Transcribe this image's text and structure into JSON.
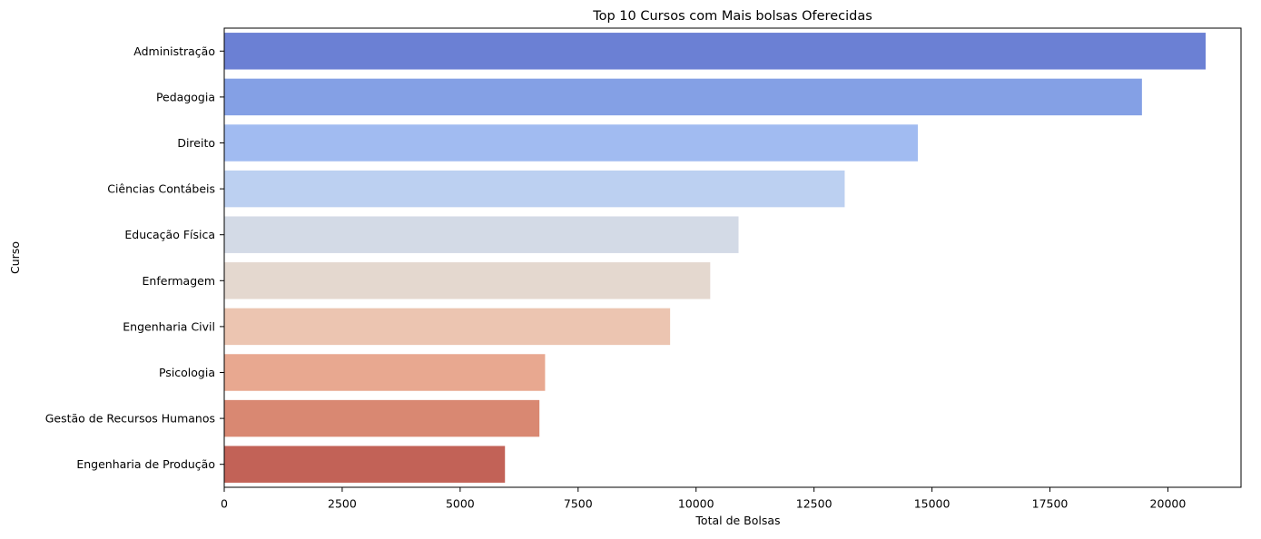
{
  "chart_data": {
    "type": "bar",
    "orientation": "horizontal",
    "title": "Top 10 Cursos com Mais bolsas Oferecidas",
    "xlabel": "Total de Bolsas",
    "ylabel": "Curso",
    "xlim": [
      0,
      21550
    ],
    "xticks": [
      0,
      2500,
      5000,
      7500,
      10000,
      12500,
      15000,
      17500,
      20000
    ],
    "xtick_labels": [
      "0",
      "2500",
      "5000",
      "7500",
      "10000",
      "12500",
      "15000",
      "17500",
      "20000"
    ],
    "grid": false,
    "legend": "none",
    "categories": [
      "Administração",
      "Pedagogia",
      "Direito",
      "Ciências Contábeis",
      "Educação Física",
      "Enfermagem",
      "Engenharia Civil",
      "Psicologia",
      "Gestão de Recursos Humanos",
      "Engenharia de Produção"
    ],
    "values": [
      20800,
      19450,
      14700,
      13150,
      10900,
      10300,
      9450,
      6800,
      6680,
      5950
    ],
    "colors": [
      "#6b80d4",
      "#84a0e5",
      "#a1bbf1",
      "#bcd0f1",
      "#d3dae6",
      "#e4d8cf",
      "#ecc5b1",
      "#e8a890",
      "#d98872",
      "#c26257"
    ]
  }
}
